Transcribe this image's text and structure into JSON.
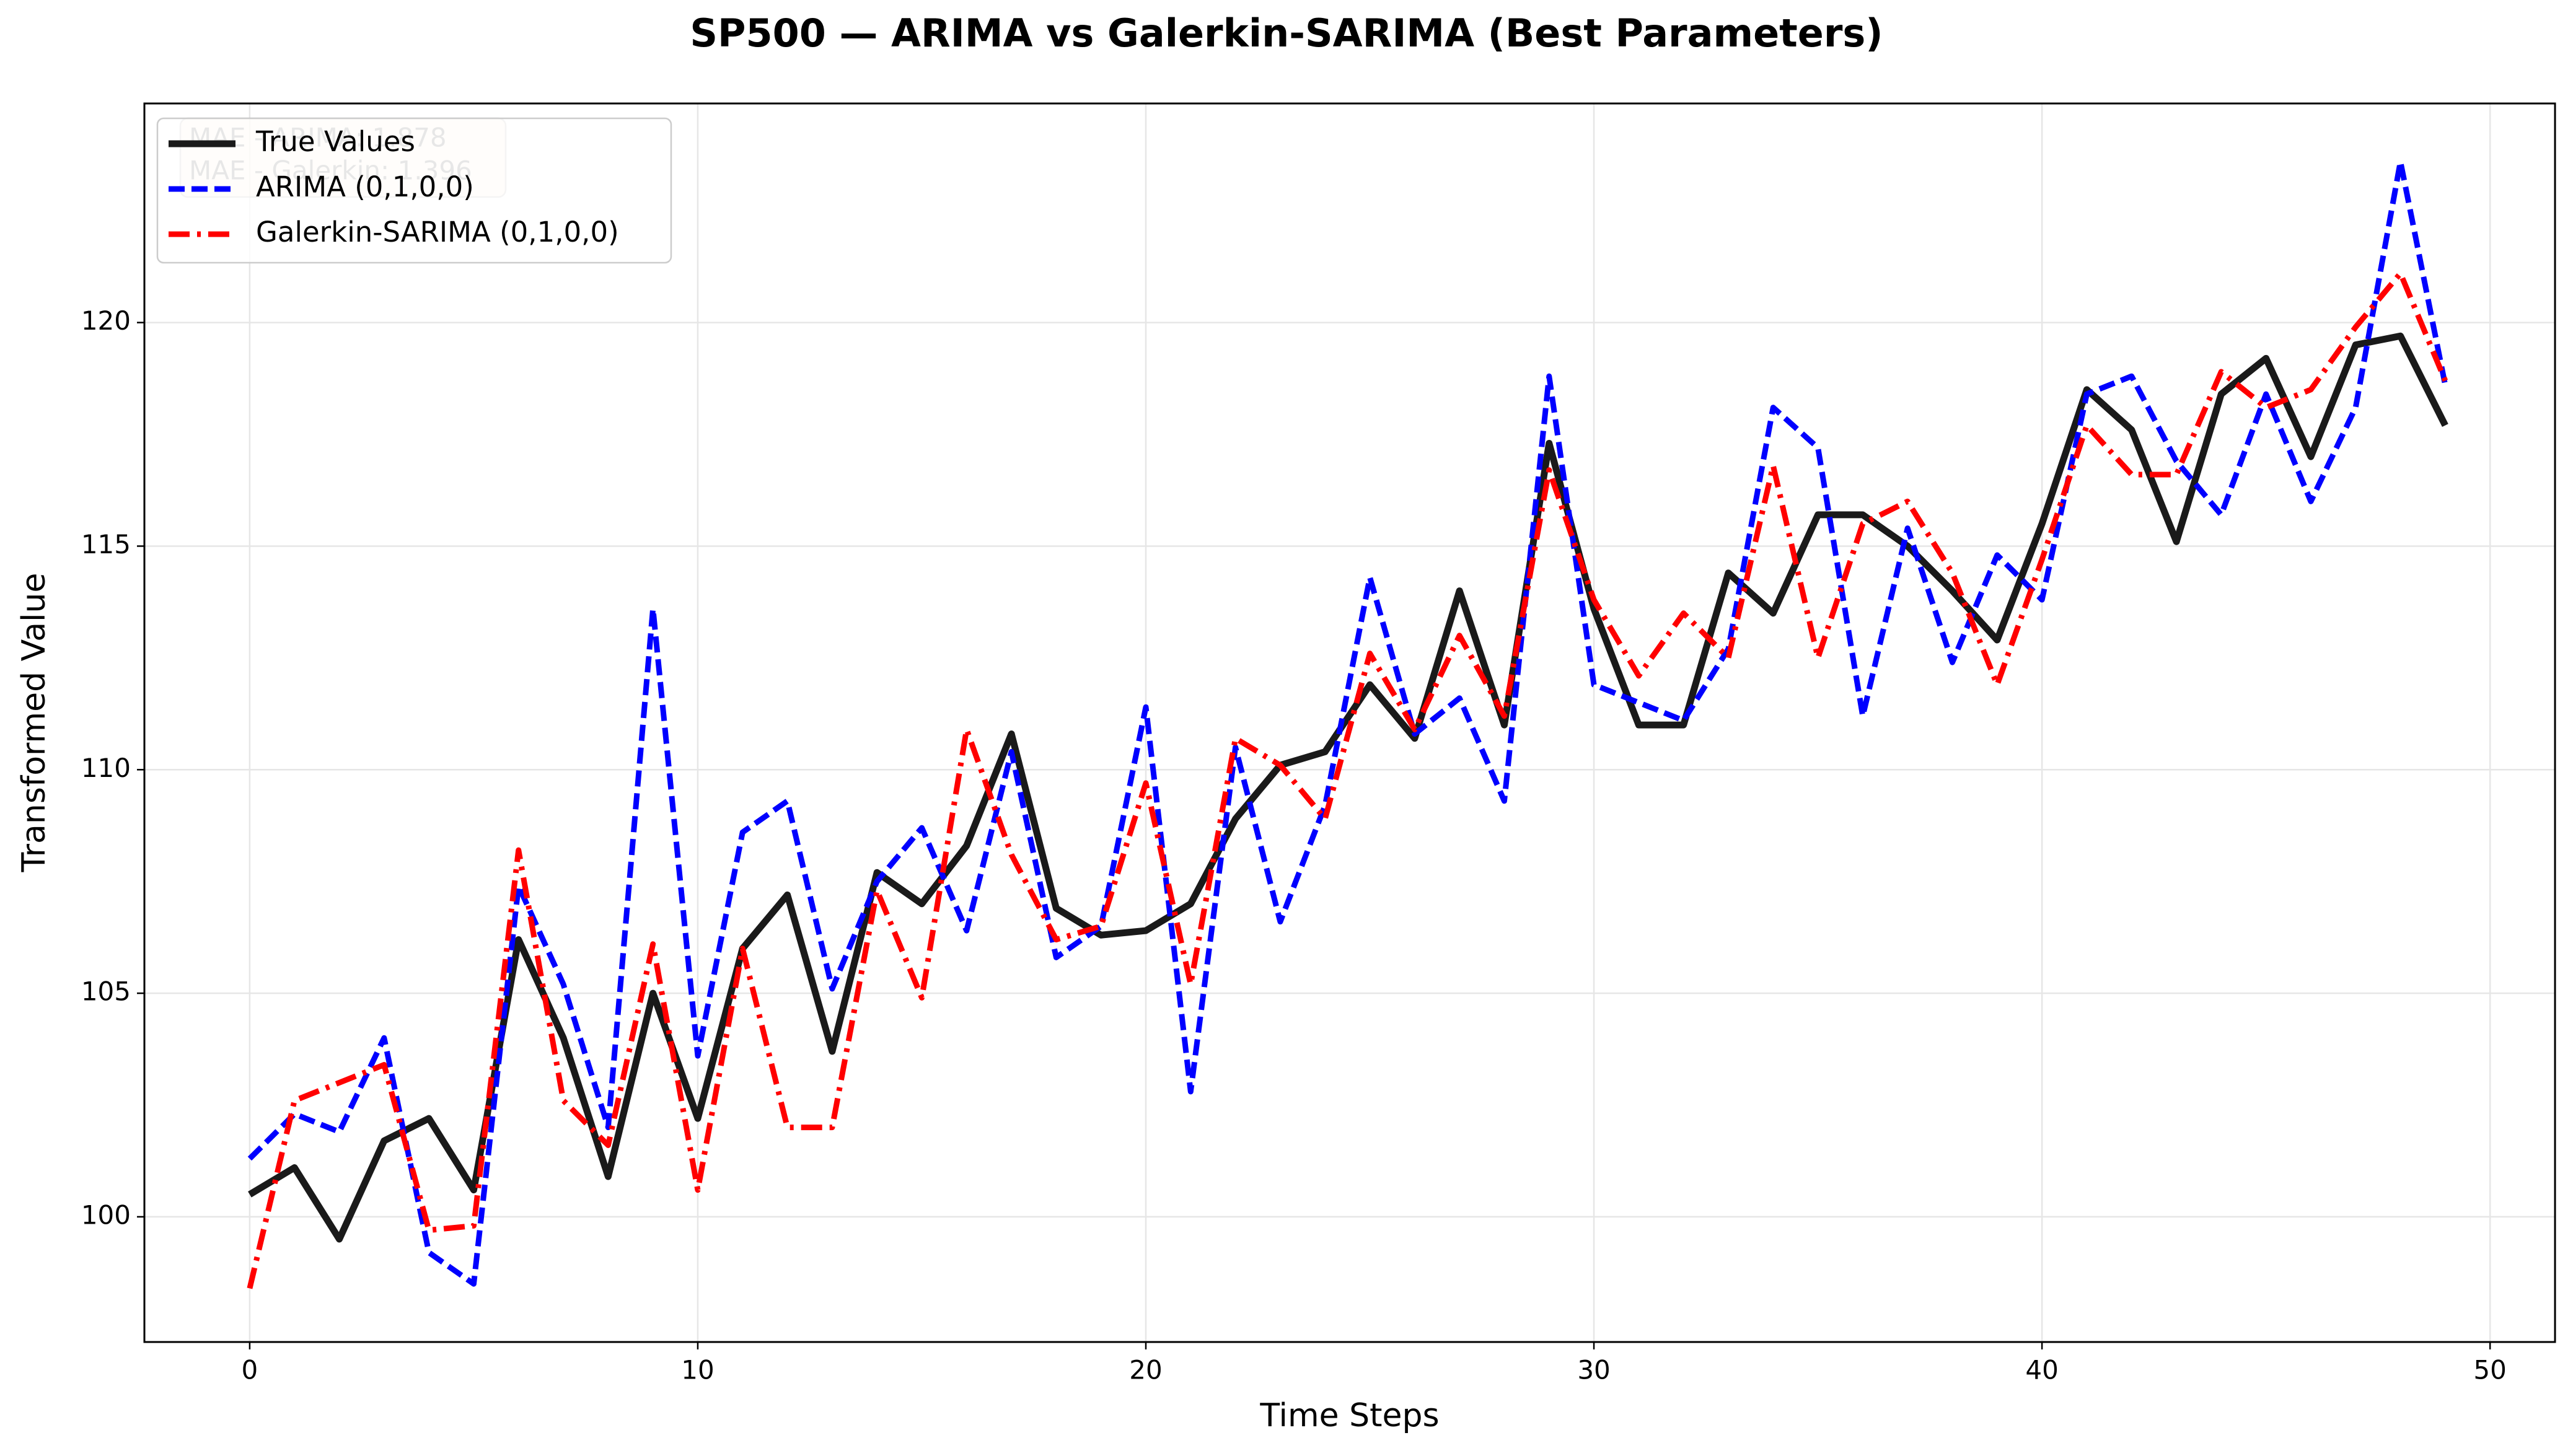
{
  "chart_data": {
    "type": "line",
    "title": "SP500 — ARIMA vs Galerkin-SARIMA (Best Parameters)",
    "x_label": "Time Steps",
    "y_label": "Transformed Value",
    "x": [
      0,
      1,
      2,
      3,
      4,
      5,
      6,
      7,
      8,
      9,
      10,
      11,
      12,
      13,
      14,
      15,
      16,
      17,
      18,
      19,
      20,
      21,
      22,
      23,
      24,
      25,
      26,
      27,
      28,
      29,
      30,
      31,
      32,
      33,
      34,
      35,
      36,
      37,
      38,
      39,
      40,
      41,
      42,
      43,
      44,
      45,
      46,
      47,
      48,
      49
    ],
    "series": [
      {
        "name": "True Values",
        "color": "#1a1a1a",
        "dash": "solid",
        "values": [
          100.5,
          101.1,
          99.5,
          101.7,
          102.2,
          100.6,
          106.2,
          104.0,
          100.9,
          105.0,
          102.2,
          106.0,
          107.2,
          103.7,
          107.7,
          107.0,
          108.3,
          110.8,
          106.9,
          106.3,
          106.4,
          107.0,
          108.9,
          110.1,
          110.4,
          111.9,
          110.7,
          114.0,
          111.0,
          117.3,
          113.6,
          111.0,
          111.0,
          114.4,
          113.5,
          115.7,
          115.7,
          115.0,
          114.0,
          112.9,
          115.5,
          118.5,
          117.6,
          115.1,
          118.4,
          119.2,
          117.0,
          119.5,
          119.7,
          117.7
        ]
      },
      {
        "name": "ARIMA (0,1,0,0)",
        "color": "#0000ff",
        "dash": "dashed",
        "values": [
          101.3,
          102.3,
          101.9,
          104.0,
          99.2,
          98.5,
          107.4,
          105.2,
          102.0,
          113.6,
          103.6,
          108.6,
          109.3,
          105.1,
          107.5,
          108.7,
          106.4,
          110.4,
          105.8,
          106.5,
          111.4,
          102.8,
          110.5,
          106.6,
          109.2,
          114.3,
          110.8,
          111.6,
          109.3,
          118.8,
          111.9,
          111.5,
          111.1,
          112.7,
          118.1,
          117.2,
          111.2,
          115.4,
          112.4,
          114.8,
          113.8,
          118.4,
          118.8,
          116.9,
          115.7,
          118.4,
          116.0,
          118.1,
          123.6,
          118.6
        ]
      },
      {
        "name": "Galerkin-SARIMA (0,1,0,0)",
        "color": "#ff0000",
        "dash": "dashdot",
        "values": [
          98.4,
          102.6,
          103.0,
          103.4,
          99.7,
          99.8,
          108.2,
          102.6,
          101.6,
          106.1,
          100.6,
          106.0,
          102.0,
          102.0,
          107.3,
          104.9,
          110.9,
          108.1,
          106.2,
          106.5,
          109.7,
          105.2,
          110.7,
          110.1,
          108.9,
          112.6,
          110.9,
          113.0,
          111.2,
          116.7,
          113.8,
          112.1,
          113.5,
          112.5,
          116.8,
          112.5,
          115.5,
          116.0,
          114.4,
          111.9,
          114.7,
          117.7,
          116.6,
          116.6,
          118.9,
          118.1,
          118.5,
          119.9,
          121.1,
          118.7
        ]
      }
    ],
    "annotation": [
      "MAE - ARIMA: 1.878",
      "MAE - Galerkin: 1.396"
    ],
    "xlim": [
      -2.35,
      51.45
    ],
    "xticks": [
      0,
      10,
      20,
      30,
      40,
      50
    ],
    "ylim": [
      97.2,
      124.9
    ],
    "yticks": [
      100,
      105,
      110,
      115,
      120
    ],
    "grid": true,
    "legend": "upper left"
  }
}
